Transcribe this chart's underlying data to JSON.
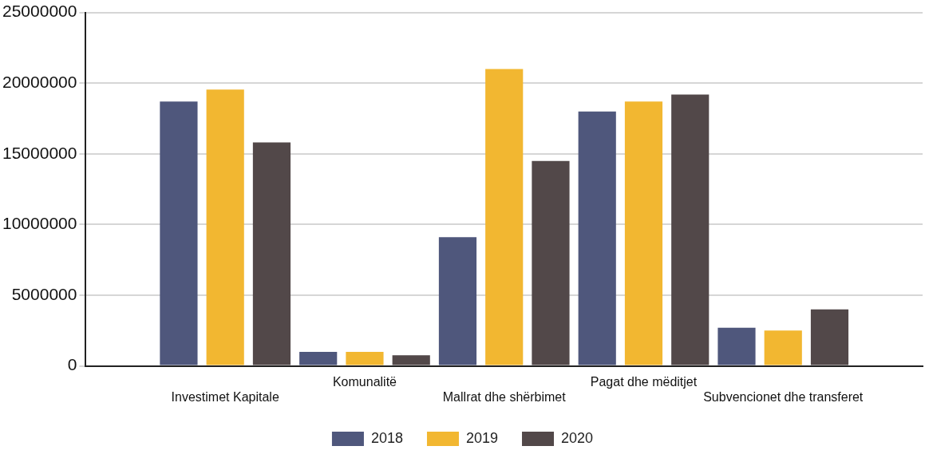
{
  "chart_data": {
    "type": "bar",
    "categories": [
      "Investimet Kapitale",
      "Komunalitë",
      "Mallrat dhe shërbimet",
      "Pagat dhe mëditjet",
      "Subvencionet dhe transferet"
    ],
    "series": [
      {
        "name": "2018",
        "color": "#4f577c",
        "values": [
          18700000,
          1000000,
          9100000,
          18000000,
          2700000
        ]
      },
      {
        "name": "2019",
        "color": "#f2b731",
        "values": [
          19550000,
          1000000,
          21000000,
          18700000,
          2500000
        ]
      },
      {
        "name": "2020",
        "color": "#524849",
        "values": [
          15800000,
          750000,
          14500000,
          19200000,
          4000000
        ]
      }
    ],
    "ylim": [
      0,
      25000000
    ],
    "yticks": [
      0,
      5000000,
      10000000,
      15000000,
      20000000,
      25000000
    ],
    "grid": "y",
    "legend": "bottom"
  }
}
